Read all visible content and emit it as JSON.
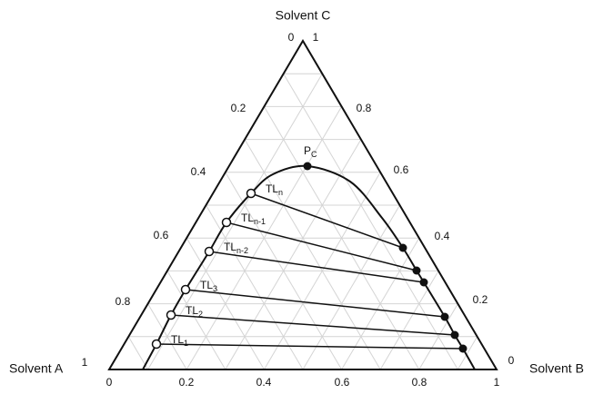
{
  "title": "Solvent C",
  "vertex_labels": {
    "a": "Solvent A",
    "b": "Solvent B"
  },
  "bottom_ticks": [
    "0",
    "0.2",
    "0.4",
    "0.6",
    "0.8",
    "1"
  ],
  "left_ticks": [
    "1",
    "0.8",
    "0.6",
    "0.4",
    "0.2",
    "0"
  ],
  "right_ticks": [
    "1",
    "0.8",
    "0.6",
    "0.4",
    "0.2",
    "0"
  ],
  "plait_point": {
    "label": "P",
    "sub": "C"
  },
  "tie_lines": [
    {
      "label": "TL",
      "sub": "1"
    },
    {
      "label": "TL",
      "sub": "2"
    },
    {
      "label": "TL",
      "sub": "3"
    },
    {
      "label": "TL",
      "sub": "n-2"
    },
    {
      "label": "TL",
      "sub": "n-1"
    },
    {
      "label": "TL",
      "sub": "n"
    }
  ]
}
